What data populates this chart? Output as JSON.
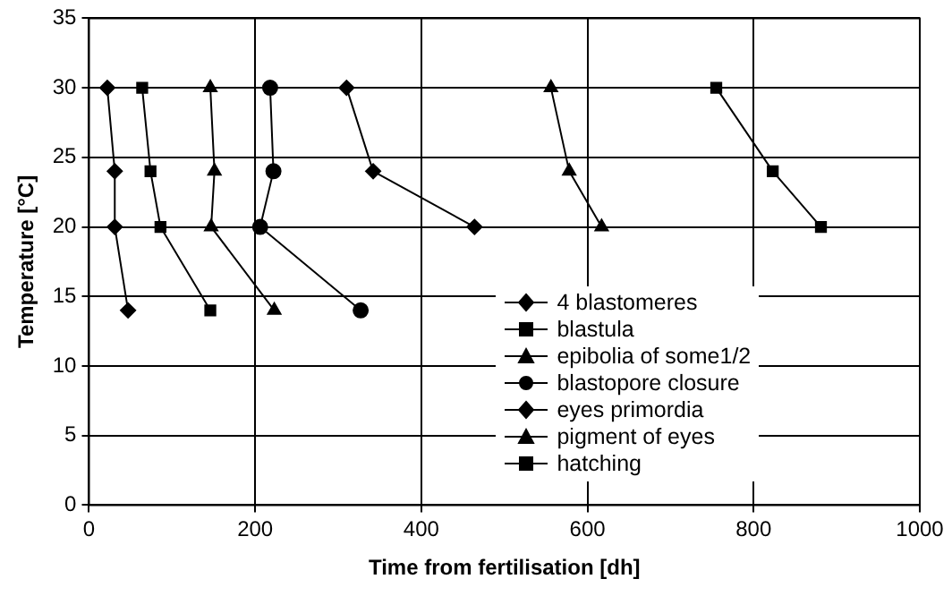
{
  "chart_data": {
    "type": "line",
    "xlabel": "Time from fertilisation [dh]",
    "ylabel": "Temperature [°C]",
    "xlim": [
      0,
      1000
    ],
    "xticks": [
      0,
      200,
      400,
      600,
      800,
      1000
    ],
    "ylim": [
      0,
      35
    ],
    "yticks": [
      0,
      5,
      10,
      15,
      20,
      25,
      30,
      35
    ],
    "grid": true,
    "legend": "right",
    "series": [
      {
        "name": "4 blastomeres",
        "color": "#000000",
        "marker": "diamond",
        "x": [
          22,
          31,
          31,
          47
        ],
        "values": [
          30,
          24,
          20,
          14
        ]
      },
      {
        "name": "blastula",
        "color": "#000000",
        "marker": "square",
        "x": [
          64,
          74,
          86,
          146
        ],
        "values": [
          30,
          24,
          20,
          14
        ]
      },
      {
        "name": "epibolia of some1/2",
        "color": "#000000",
        "marker": "triangle",
        "x": [
          146,
          151,
          147,
          223
        ],
        "values": [
          30,
          24,
          20,
          14
        ]
      },
      {
        "name": "blastopore closure",
        "color": "#000000",
        "marker": "circle",
        "x": [
          218,
          222,
          206,
          327
        ],
        "values": [
          30,
          24,
          20,
          14
        ]
      },
      {
        "name": "eyes primordia",
        "color": "#000000",
        "marker": "diamond",
        "x": [
          310,
          342,
          464
        ],
        "values": [
          30,
          24,
          20
        ]
      },
      {
        "name": "pigment of eyes",
        "color": "#000000",
        "marker": "triangle",
        "x": [
          556,
          578,
          617
        ],
        "values": [
          30,
          24,
          20
        ]
      },
      {
        "name": "hatching",
        "color": "#000000",
        "marker": "square",
        "x": [
          755,
          823,
          881
        ],
        "values": [
          30,
          24,
          20
        ]
      }
    ]
  }
}
